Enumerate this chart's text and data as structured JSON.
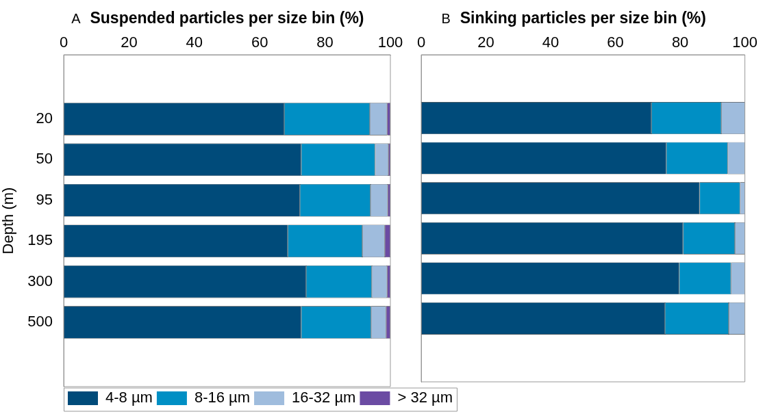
{
  "chart_data": [
    {
      "type": "bar",
      "orientation": "horizontal",
      "stacked": true,
      "title": "Suspended particles per size bin (%)",
      "annotations": [
        "A"
      ],
      "ylabel": "Depth (m)",
      "categories": [
        "20",
        "50",
        "95",
        "195",
        "300",
        "500"
      ],
      "xlim": [
        0,
        100
      ],
      "xticks": [
        0,
        20,
        40,
        60,
        80,
        100
      ],
      "grid": false,
      "legend": "bottom",
      "series": [
        {
          "name": "4-8 µm",
          "color": "#004b7a",
          "values": [
            67.5,
            72.7,
            72.3,
            68.6,
            74.2,
            72.7
          ]
        },
        {
          "name": "8-16 µm",
          "color": "#008fc4",
          "values": [
            26.2,
            22.6,
            21.6,
            22.8,
            20.1,
            21.4
          ]
        },
        {
          "name": "16-32 µm",
          "color": "#9fbcdd",
          "values": [
            5.3,
            4.1,
            5.3,
            6.9,
            4.7,
            4.6
          ]
        },
        {
          "name": "> 32 µm",
          "color": "#6b4ba3",
          "values": [
            1.0,
            0.6,
            0.8,
            1.7,
            1.0,
            1.3
          ]
        }
      ]
    },
    {
      "type": "bar",
      "orientation": "horizontal",
      "stacked": true,
      "title": "Sinking particles per size bin (%)",
      "annotations": [
        "B"
      ],
      "categories": [
        "20",
        "50",
        "95",
        "195",
        "300",
        "500"
      ],
      "xlim": [
        0,
        100
      ],
      "xticks": [
        0,
        20,
        40,
        60,
        80,
        100
      ],
      "grid": false,
      "tick_labels": "x",
      "series": [
        {
          "color": "#004b7a",
          "values": [
            71.1,
            75.7,
            86.0,
            80.9,
            79.7,
            75.3
          ]
        },
        {
          "color": "#008fc4",
          "values": [
            21.6,
            19.0,
            12.5,
            16.0,
            16.0,
            19.7
          ]
        },
        {
          "color": "#9fbcdd",
          "values": [
            7.3,
            5.3,
            1.5,
            3.1,
            4.3,
            5.0
          ]
        }
      ]
    }
  ]
}
